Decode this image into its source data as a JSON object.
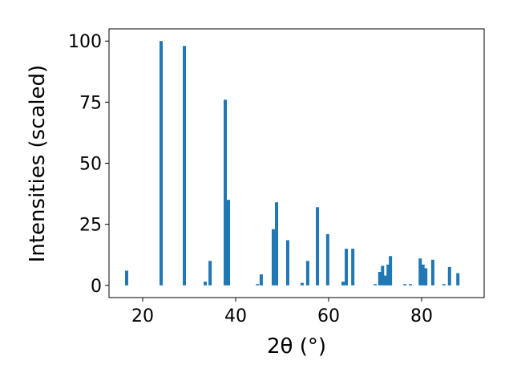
{
  "chart_data": {
    "type": "bar",
    "x_label": "2θ (°)",
    "y_label": "Intensities (scaled)",
    "x": [
      16.55,
      23.97,
      28.97,
      33.45,
      34.5,
      37.76,
      38.45,
      44.7,
      45.5,
      48.1,
      48.8,
      51.2,
      54.3,
      55.5,
      57.6,
      59.8,
      63.1,
      63.8,
      65.2,
      70.0,
      71.0,
      71.6,
      72.2,
      72.8,
      73.3,
      76.4,
      77.6,
      79.7,
      80.3,
      80.9,
      82.4,
      84.8,
      86.0,
      87.8
    ],
    "values": [
      6,
      100,
      98,
      1.5,
      10,
      76,
      35,
      0.5,
      4.5,
      23,
      34,
      18.5,
      1,
      10,
      32,
      21,
      1.5,
      15,
      15,
      0.5,
      5.5,
      8,
      4,
      8.5,
      12,
      0.5,
      0.5,
      11,
      8.5,
      7,
      10.5,
      0.5,
      7.5,
      5
    ],
    "color": "#1f77b4",
    "xlim": [
      12.76,
      93.45
    ],
    "xticks": [
      20,
      40,
      60,
      80
    ],
    "ylim": [
      -5,
      105
    ],
    "yticks": [
      0,
      25,
      50,
      75,
      100
    ]
  }
}
